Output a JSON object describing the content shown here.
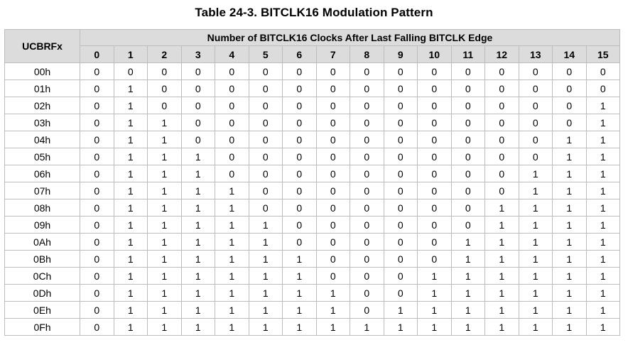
{
  "caption": "Table 24-3. BITCLK16 Modulation Pattern",
  "table": {
    "row_header": "UCBRFx",
    "group_header": "Number of BITCLK16 Clocks After Last Falling BITCLK Edge",
    "columns": [
      "0",
      "1",
      "2",
      "3",
      "4",
      "5",
      "6",
      "7",
      "8",
      "9",
      "10",
      "11",
      "12",
      "13",
      "14",
      "15"
    ],
    "rows": [
      {
        "label": "00h",
        "values": [
          "0",
          "0",
          "0",
          "0",
          "0",
          "0",
          "0",
          "0",
          "0",
          "0",
          "0",
          "0",
          "0",
          "0",
          "0",
          "0"
        ]
      },
      {
        "label": "01h",
        "values": [
          "0",
          "1",
          "0",
          "0",
          "0",
          "0",
          "0",
          "0",
          "0",
          "0",
          "0",
          "0",
          "0",
          "0",
          "0",
          "0"
        ]
      },
      {
        "label": "02h",
        "values": [
          "0",
          "1",
          "0",
          "0",
          "0",
          "0",
          "0",
          "0",
          "0",
          "0",
          "0",
          "0",
          "0",
          "0",
          "0",
          "1"
        ]
      },
      {
        "label": "03h",
        "values": [
          "0",
          "1",
          "1",
          "0",
          "0",
          "0",
          "0",
          "0",
          "0",
          "0",
          "0",
          "0",
          "0",
          "0",
          "0",
          "1"
        ]
      },
      {
        "label": "04h",
        "values": [
          "0",
          "1",
          "1",
          "0",
          "0",
          "0",
          "0",
          "0",
          "0",
          "0",
          "0",
          "0",
          "0",
          "0",
          "1",
          "1"
        ]
      },
      {
        "label": "05h",
        "values": [
          "0",
          "1",
          "1",
          "1",
          "0",
          "0",
          "0",
          "0",
          "0",
          "0",
          "0",
          "0",
          "0",
          "0",
          "1",
          "1"
        ]
      },
      {
        "label": "06h",
        "values": [
          "0",
          "1",
          "1",
          "1",
          "0",
          "0",
          "0",
          "0",
          "0",
          "0",
          "0",
          "0",
          "0",
          "1",
          "1",
          "1"
        ]
      },
      {
        "label": "07h",
        "values": [
          "0",
          "1",
          "1",
          "1",
          "1",
          "0",
          "0",
          "0",
          "0",
          "0",
          "0",
          "0",
          "0",
          "1",
          "1",
          "1"
        ]
      },
      {
        "label": "08h",
        "values": [
          "0",
          "1",
          "1",
          "1",
          "1",
          "0",
          "0",
          "0",
          "0",
          "0",
          "0",
          "0",
          "1",
          "1",
          "1",
          "1"
        ]
      },
      {
        "label": "09h",
        "values": [
          "0",
          "1",
          "1",
          "1",
          "1",
          "1",
          "0",
          "0",
          "0",
          "0",
          "0",
          "0",
          "1",
          "1",
          "1",
          "1"
        ]
      },
      {
        "label": "0Ah",
        "values": [
          "0",
          "1",
          "1",
          "1",
          "1",
          "1",
          "0",
          "0",
          "0",
          "0",
          "0",
          "1",
          "1",
          "1",
          "1",
          "1"
        ]
      },
      {
        "label": "0Bh",
        "values": [
          "0",
          "1",
          "1",
          "1",
          "1",
          "1",
          "1",
          "0",
          "0",
          "0",
          "0",
          "1",
          "1",
          "1",
          "1",
          "1"
        ]
      },
      {
        "label": "0Ch",
        "values": [
          "0",
          "1",
          "1",
          "1",
          "1",
          "1",
          "1",
          "0",
          "0",
          "0",
          "1",
          "1",
          "1",
          "1",
          "1",
          "1"
        ]
      },
      {
        "label": "0Dh",
        "values": [
          "0",
          "1",
          "1",
          "1",
          "1",
          "1",
          "1",
          "1",
          "0",
          "0",
          "1",
          "1",
          "1",
          "1",
          "1",
          "1"
        ]
      },
      {
        "label": "0Eh",
        "values": [
          "0",
          "1",
          "1",
          "1",
          "1",
          "1",
          "1",
          "1",
          "0",
          "1",
          "1",
          "1",
          "1",
          "1",
          "1",
          "1"
        ]
      },
      {
        "label": "0Fh",
        "values": [
          "0",
          "1",
          "1",
          "1",
          "1",
          "1",
          "1",
          "1",
          "1",
          "1",
          "1",
          "1",
          "1",
          "1",
          "1",
          "1"
        ]
      }
    ]
  }
}
